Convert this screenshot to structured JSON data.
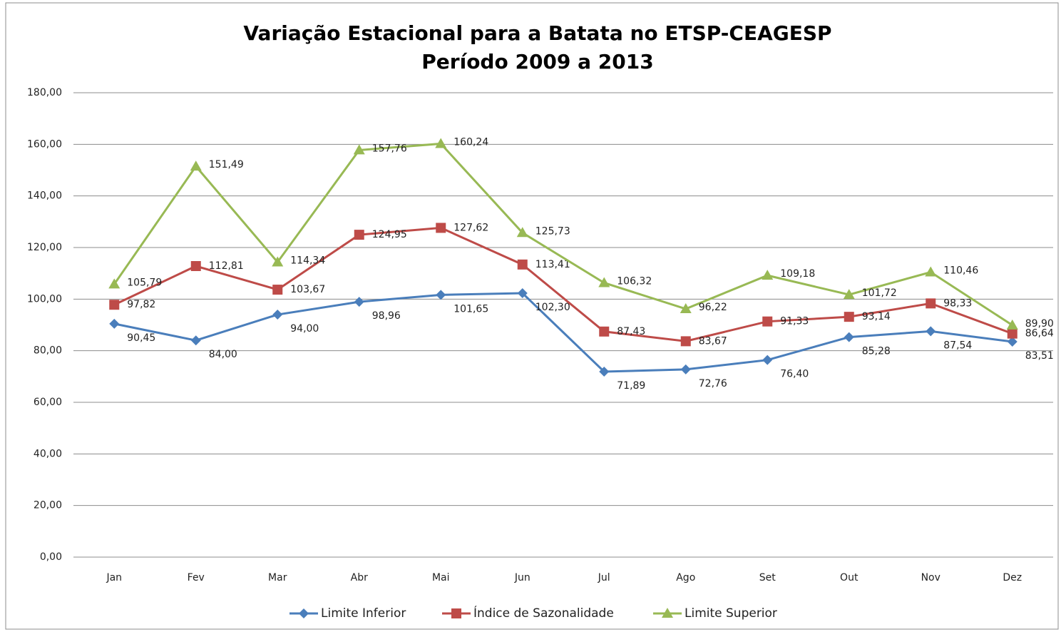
{
  "chart_data": {
    "type": "line",
    "title": "Variação Estacional para a Batata no ETSP-CEAGESP",
    "subtitle": "Período 2009 a 2013",
    "categories": [
      "Jan",
      "Fev",
      "Mar",
      "Abr",
      "Mai",
      "Jun",
      "Jul",
      "Ago",
      "Set",
      "Out",
      "Nov",
      "Dez"
    ],
    "ylim": [
      0,
      180
    ],
    "yticks": [
      {
        "value": 0,
        "label": "0,00"
      },
      {
        "value": 20,
        "label": "20,00"
      },
      {
        "value": 40,
        "label": "40,00"
      },
      {
        "value": 60,
        "label": "60,00"
      },
      {
        "value": 80,
        "label": "80,00"
      },
      {
        "value": 100,
        "label": "100,00"
      },
      {
        "value": 120,
        "label": "120,00"
      },
      {
        "value": 140,
        "label": "140,00"
      },
      {
        "value": 160,
        "label": "160,00"
      },
      {
        "value": 180,
        "label": "180,00"
      }
    ],
    "grid": true,
    "legend": "bottom",
    "series": [
      {
        "name": "Limite Inferior",
        "color": "#4a7ebb",
        "marker": "diamond",
        "values": [
          90.45,
          84.0,
          94.0,
          98.96,
          101.65,
          102.3,
          71.89,
          72.76,
          76.4,
          85.28,
          87.54,
          83.51
        ],
        "value_labels": [
          "90,45",
          "84,00",
          "94,00",
          "98,96",
          "101,65",
          "102,30",
          "71,89",
          "72,76",
          "76,40",
          "85,28",
          "87,54",
          "83,51"
        ]
      },
      {
        "name": "Índice de Sazonalidade",
        "color": "#be4b48",
        "marker": "square",
        "values": [
          97.82,
          112.81,
          103.67,
          124.95,
          127.62,
          113.41,
          87.43,
          83.67,
          91.33,
          93.14,
          98.33,
          86.64
        ],
        "value_labels": [
          "97,82",
          "112,81",
          "103,67",
          "124,95",
          "127,62",
          "113,41",
          "87,43",
          "83,67",
          "91,33",
          "93,14",
          "98,33",
          "86,64"
        ]
      },
      {
        "name": "Limite Superior",
        "color": "#98b954",
        "marker": "triangle",
        "values": [
          105.79,
          151.49,
          114.34,
          157.76,
          160.24,
          125.73,
          106.32,
          96.22,
          109.18,
          101.72,
          110.46,
          89.9
        ],
        "value_labels": [
          "105,79",
          "151,49",
          "114,34",
          "157,76",
          "160,24",
          "125,73",
          "106,32",
          "96,22",
          "109,18",
          "101,72",
          "110,46",
          "89,90"
        ]
      }
    ]
  }
}
